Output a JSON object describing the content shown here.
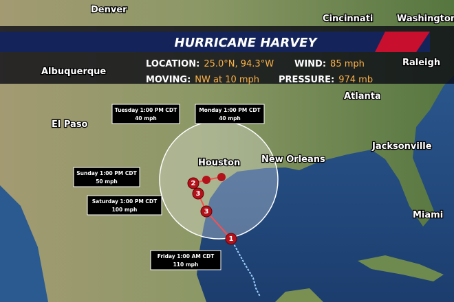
{
  "banner": {
    "title": "HURRICANE HARVEY",
    "rows": [
      [
        {
          "label": "LOCATION:",
          "value": "25.0°N, 94.3°W"
        },
        {
          "label": "WIND:",
          "value": "85 mph"
        }
      ],
      [
        {
          "label": "MOVING:",
          "value": "NW at 10 mph"
        },
        {
          "label": "PRESSURE:",
          "value": "974 mb"
        }
      ]
    ]
  },
  "cities": [
    "Denver",
    "Cincinnati",
    "Washington",
    "Raleigh",
    "Albuquerque",
    "El Paso",
    "Atlanta",
    "Houston",
    "New Orleans",
    "Jacksonville",
    "Miami"
  ],
  "forecast_points": [
    {
      "time": "Tuesday 1:00 PM CDT",
      "wind": "40 mph"
    },
    {
      "time": "Monday 1:00 PM CDT",
      "wind": "40 mph"
    },
    {
      "time": "Sunday 1:00 PM CDT",
      "wind": "50 mph"
    },
    {
      "time": "Saturday 1:00 PM CDT",
      "wind": "100 mph"
    },
    {
      "time": "Friday 1:00 AM CDT",
      "wind": "110 mph"
    }
  ],
  "storm_markers": [
    "1",
    "3",
    "3",
    "2"
  ]
}
